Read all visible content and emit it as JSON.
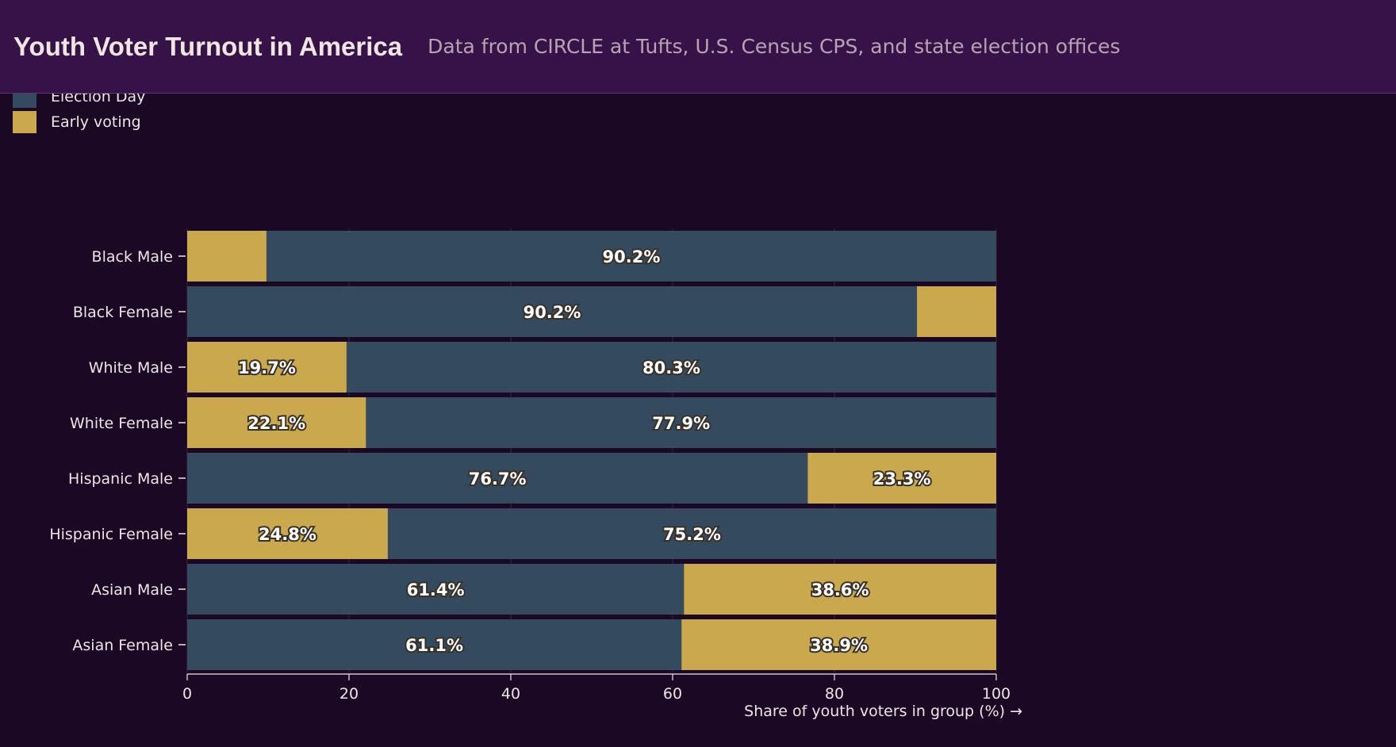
{
  "header": {
    "title": "Youth Voter Turnout in America",
    "subtitle": "Data from CIRCLE at Tufts, U.S. Census CPS, and state election offices"
  },
  "legend": {
    "items": [
      {
        "label": "Election Day",
        "color": "#344a5f"
      },
      {
        "label": "Early voting",
        "color": "#c9a84e"
      }
    ]
  },
  "chart_data": {
    "type": "bar",
    "orientation": "horizontal",
    "stacked": true,
    "categories": [
      "Black Male",
      "Black Female",
      "White Male",
      "White Female",
      "Hispanic Male",
      "Hispanic Female",
      "Asian Male",
      "Asian Female"
    ],
    "segments": [
      [
        {
          "series": "Early voting",
          "value": 9.8,
          "label": ""
        },
        {
          "series": "Election Day",
          "value": 90.2,
          "label": "90.2%"
        }
      ],
      [
        {
          "series": "Election Day",
          "value": 90.2,
          "label": "90.2%"
        },
        {
          "series": "Early voting",
          "value": 9.8,
          "label": ""
        }
      ],
      [
        {
          "series": "Early voting",
          "value": 19.7,
          "label": "19.7%"
        },
        {
          "series": "Election Day",
          "value": 80.3,
          "label": "80.3%"
        }
      ],
      [
        {
          "series": "Early voting",
          "value": 22.1,
          "label": "22.1%"
        },
        {
          "series": "Election Day",
          "value": 77.9,
          "label": "77.9%"
        }
      ],
      [
        {
          "series": "Election Day",
          "value": 76.7,
          "label": "76.7%"
        },
        {
          "series": "Early voting",
          "value": 23.3,
          "label": "23.3%"
        }
      ],
      [
        {
          "series": "Early voting",
          "value": 24.8,
          "label": "24.8%"
        },
        {
          "series": "Election Day",
          "value": 75.2,
          "label": "75.2%"
        }
      ],
      [
        {
          "series": "Election Day",
          "value": 61.4,
          "label": "61.4%"
        },
        {
          "series": "Early voting",
          "value": 38.6,
          "label": "38.6%"
        }
      ],
      [
        {
          "series": "Election Day",
          "value": 61.1,
          "label": "61.1%"
        },
        {
          "series": "Early voting",
          "value": 38.9,
          "label": "38.9%"
        }
      ]
    ],
    "xlim": [
      0,
      100
    ],
    "xticks": [
      0,
      20,
      40,
      60,
      80,
      100
    ],
    "xlabel": "Share of youth voters in group (%) →",
    "grid": true,
    "legend_position": "top-left",
    "colors": {
      "Election Day": "#344a5f",
      "Early voting": "#c9a84e"
    }
  }
}
